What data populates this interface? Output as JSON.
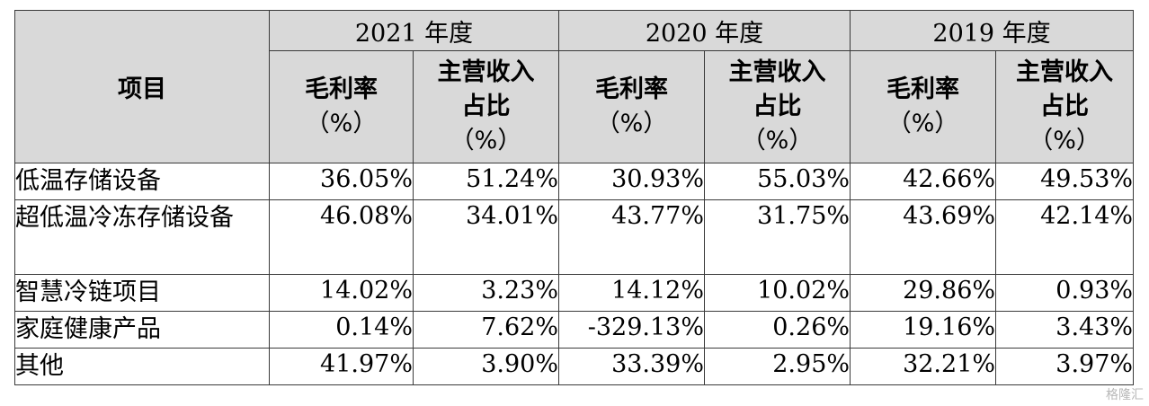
{
  "table": {
    "item_header": "项目",
    "years": [
      "2021 年度",
      "2020 年度",
      "2019 年度"
    ],
    "margin_header": {
      "line1": "毛利率",
      "line2": "（%）"
    },
    "share_header": {
      "line1": "主营收入",
      "line2": "占比",
      "line3": "（%）"
    },
    "rows": [
      {
        "name": "低温存储设备",
        "values": [
          "36.05%",
          "51.24%",
          "30.93%",
          "55.03%",
          "42.66%",
          "49.53%"
        ]
      },
      {
        "name": "超低温冷冻存储设备",
        "values": [
          "46.08%",
          "34.01%",
          "43.77%",
          "31.75%",
          "43.69%",
          "42.14%"
        ]
      },
      {
        "name": "智慧冷链项目",
        "values": [
          "14.02%",
          "3.23%",
          "14.12%",
          "10.02%",
          "29.86%",
          "0.93%"
        ]
      },
      {
        "name": "家庭健康产品",
        "values": [
          "0.14%",
          "7.62%",
          "-329.13%",
          "0.26%",
          "19.16%",
          "3.43%"
        ]
      },
      {
        "name": "其他",
        "values": [
          "41.97%",
          "3.90%",
          "33.39%",
          "2.95%",
          "32.21%",
          "3.97%"
        ]
      }
    ]
  },
  "watermark": "格隆汇"
}
